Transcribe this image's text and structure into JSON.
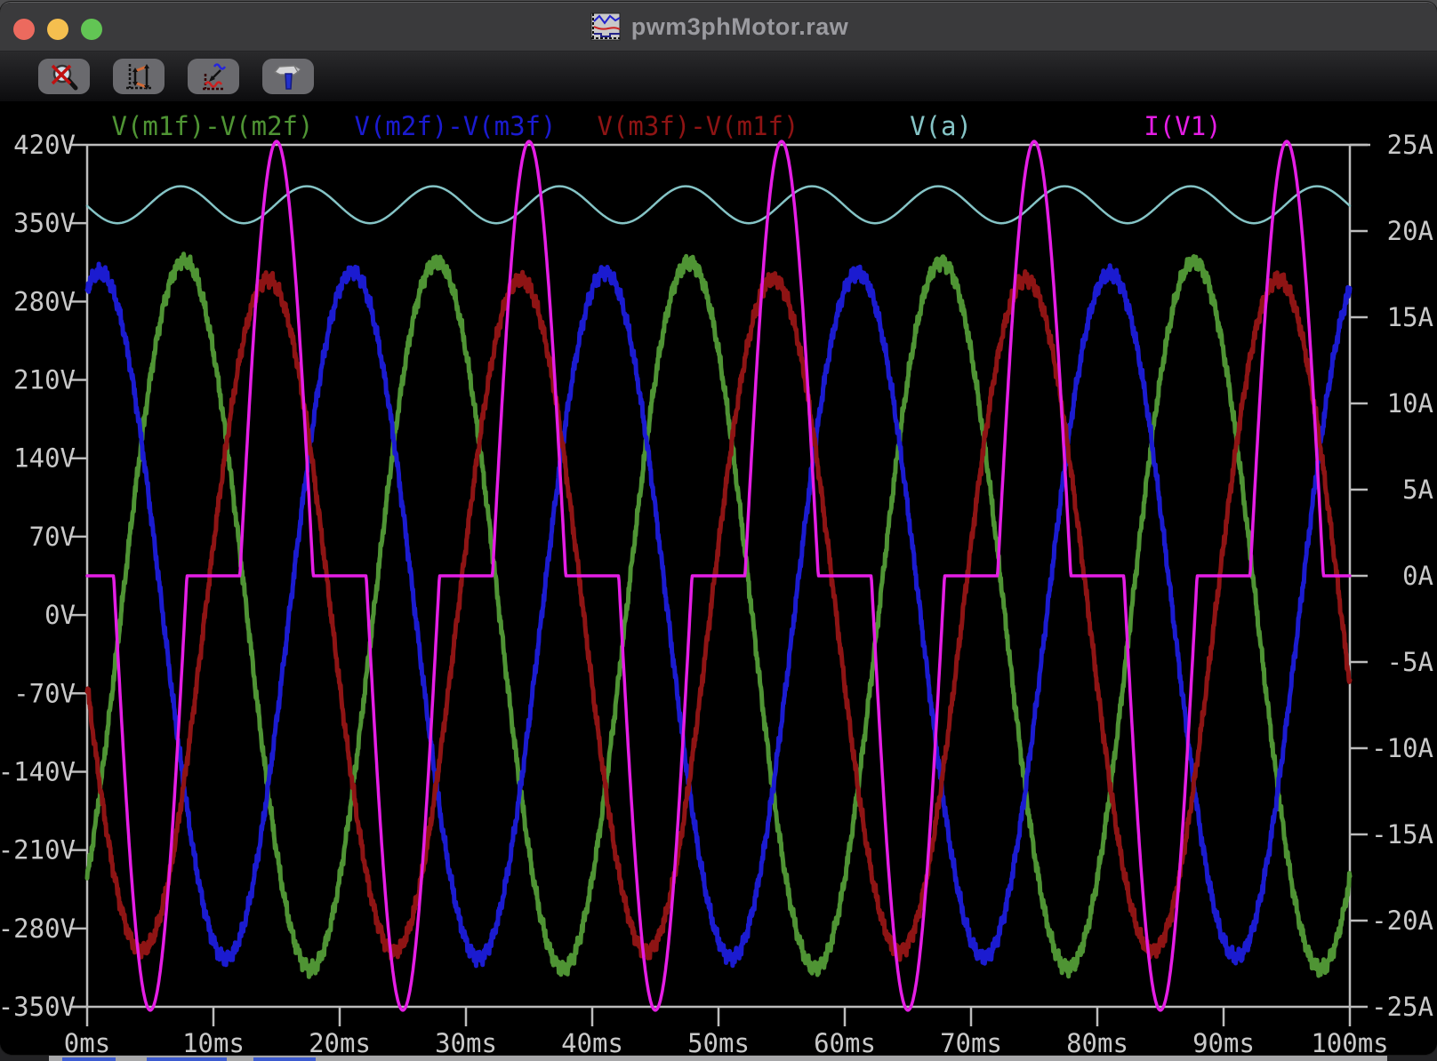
{
  "window": {
    "title": "pwm3phMotor.raw",
    "traffic_lights": [
      "close",
      "minimize",
      "zoom"
    ],
    "traffic_light_colors": {
      "close": "#ec6a5e",
      "minimize": "#f5bf4f",
      "zoom": "#62c554"
    }
  },
  "toolbar": {
    "buttons": [
      {
        "name": "zoom-back",
        "icon": "magnifier-x-icon"
      },
      {
        "name": "autorange",
        "icon": "autorange-axes-icon"
      },
      {
        "name": "plot-settings",
        "icon": "waveform-arrow-icon"
      },
      {
        "name": "control-panel",
        "icon": "hammer-icon"
      }
    ]
  },
  "chart_data": {
    "type": "line",
    "title": "pwm3phMotor.raw",
    "background": "#000000",
    "axis_color": "#bdbdbd",
    "label_color": "#c9c9c9",
    "grid": "border-ticks-only",
    "x_axis": {
      "unit": "ms",
      "min": 0,
      "max": 100,
      "tick_step": 10,
      "tick_labels": [
        "0ms",
        "10ms",
        "20ms",
        "30ms",
        "40ms",
        "50ms",
        "60ms",
        "70ms",
        "80ms",
        "90ms",
        "100ms"
      ]
    },
    "y_left": {
      "unit": "V",
      "min": -350,
      "max": 420,
      "tick_step": 70,
      "tick_labels": [
        "420V",
        "350V",
        "280V",
        "210V",
        "140V",
        "70V",
        "0V",
        "-70V",
        "-140V",
        "-210V",
        "-280V",
        "-350V"
      ],
      "tick_values": [
        420,
        350,
        280,
        210,
        140,
        70,
        0,
        -70,
        -140,
        -210,
        -280,
        -350
      ]
    },
    "y_right": {
      "unit": "A",
      "min": -25,
      "max": 25,
      "tick_step": 5,
      "tick_labels": [
        "25A",
        "20A",
        "15A",
        "10A",
        "5A",
        "0A",
        "-5A",
        "-10A",
        "-15A",
        "-20A",
        "-25A"
      ],
      "tick_values": [
        25,
        20,
        15,
        10,
        5,
        0,
        -5,
        -10,
        -15,
        -20,
        -25
      ]
    },
    "legend_position": "top-row",
    "series": [
      {
        "name": "V(m1f)-V(m2f)",
        "color": "#4f9434",
        "axis": "left",
        "model": "sine",
        "offset": 0,
        "amplitude": 316,
        "period_ms": 20,
        "peak_at_ms": 7.67,
        "ripple": 6,
        "stroke": 5
      },
      {
        "name": "V(m2f)-V(m3f)",
        "color": "#1b1bd0",
        "axis": "left",
        "model": "sine",
        "offset": 0,
        "amplitude": 306,
        "period_ms": 20,
        "peak_at_ms": 1.0,
        "ripple": 6,
        "stroke": 5
      },
      {
        "name": "V(m3f)-V(m1f)",
        "color": "#8e1414",
        "axis": "left",
        "model": "sine",
        "offset": 0,
        "amplitude": 300,
        "period_ms": 20,
        "peak_at_ms": 14.33,
        "ripple": 6,
        "stroke": 5
      },
      {
        "name": "V(a)",
        "color": "#85c4c6",
        "axis": "left",
        "model": "sine",
        "offset": 366.5,
        "amplitude": 16.5,
        "period_ms": 10,
        "peak_at_ms": 7.4,
        "ripple": 0,
        "stroke": 2.5
      },
      {
        "name": "I(V1)",
        "color": "#e51ee5",
        "axis": "right",
        "model": "inverter_input_current",
        "amplitude": 25.2,
        "period_ms": 20,
        "flat_ms": 4.2,
        "pulse_ms": 5.8,
        "first_pulse": "negative",
        "zero_level": 0,
        "stroke": 3.5,
        "description": "0A flats centered at 0,10,20...ms; alternating -25A/+25A half-sine pulses centered near 5ms and 15ms of each 20ms period"
      }
    ]
  }
}
